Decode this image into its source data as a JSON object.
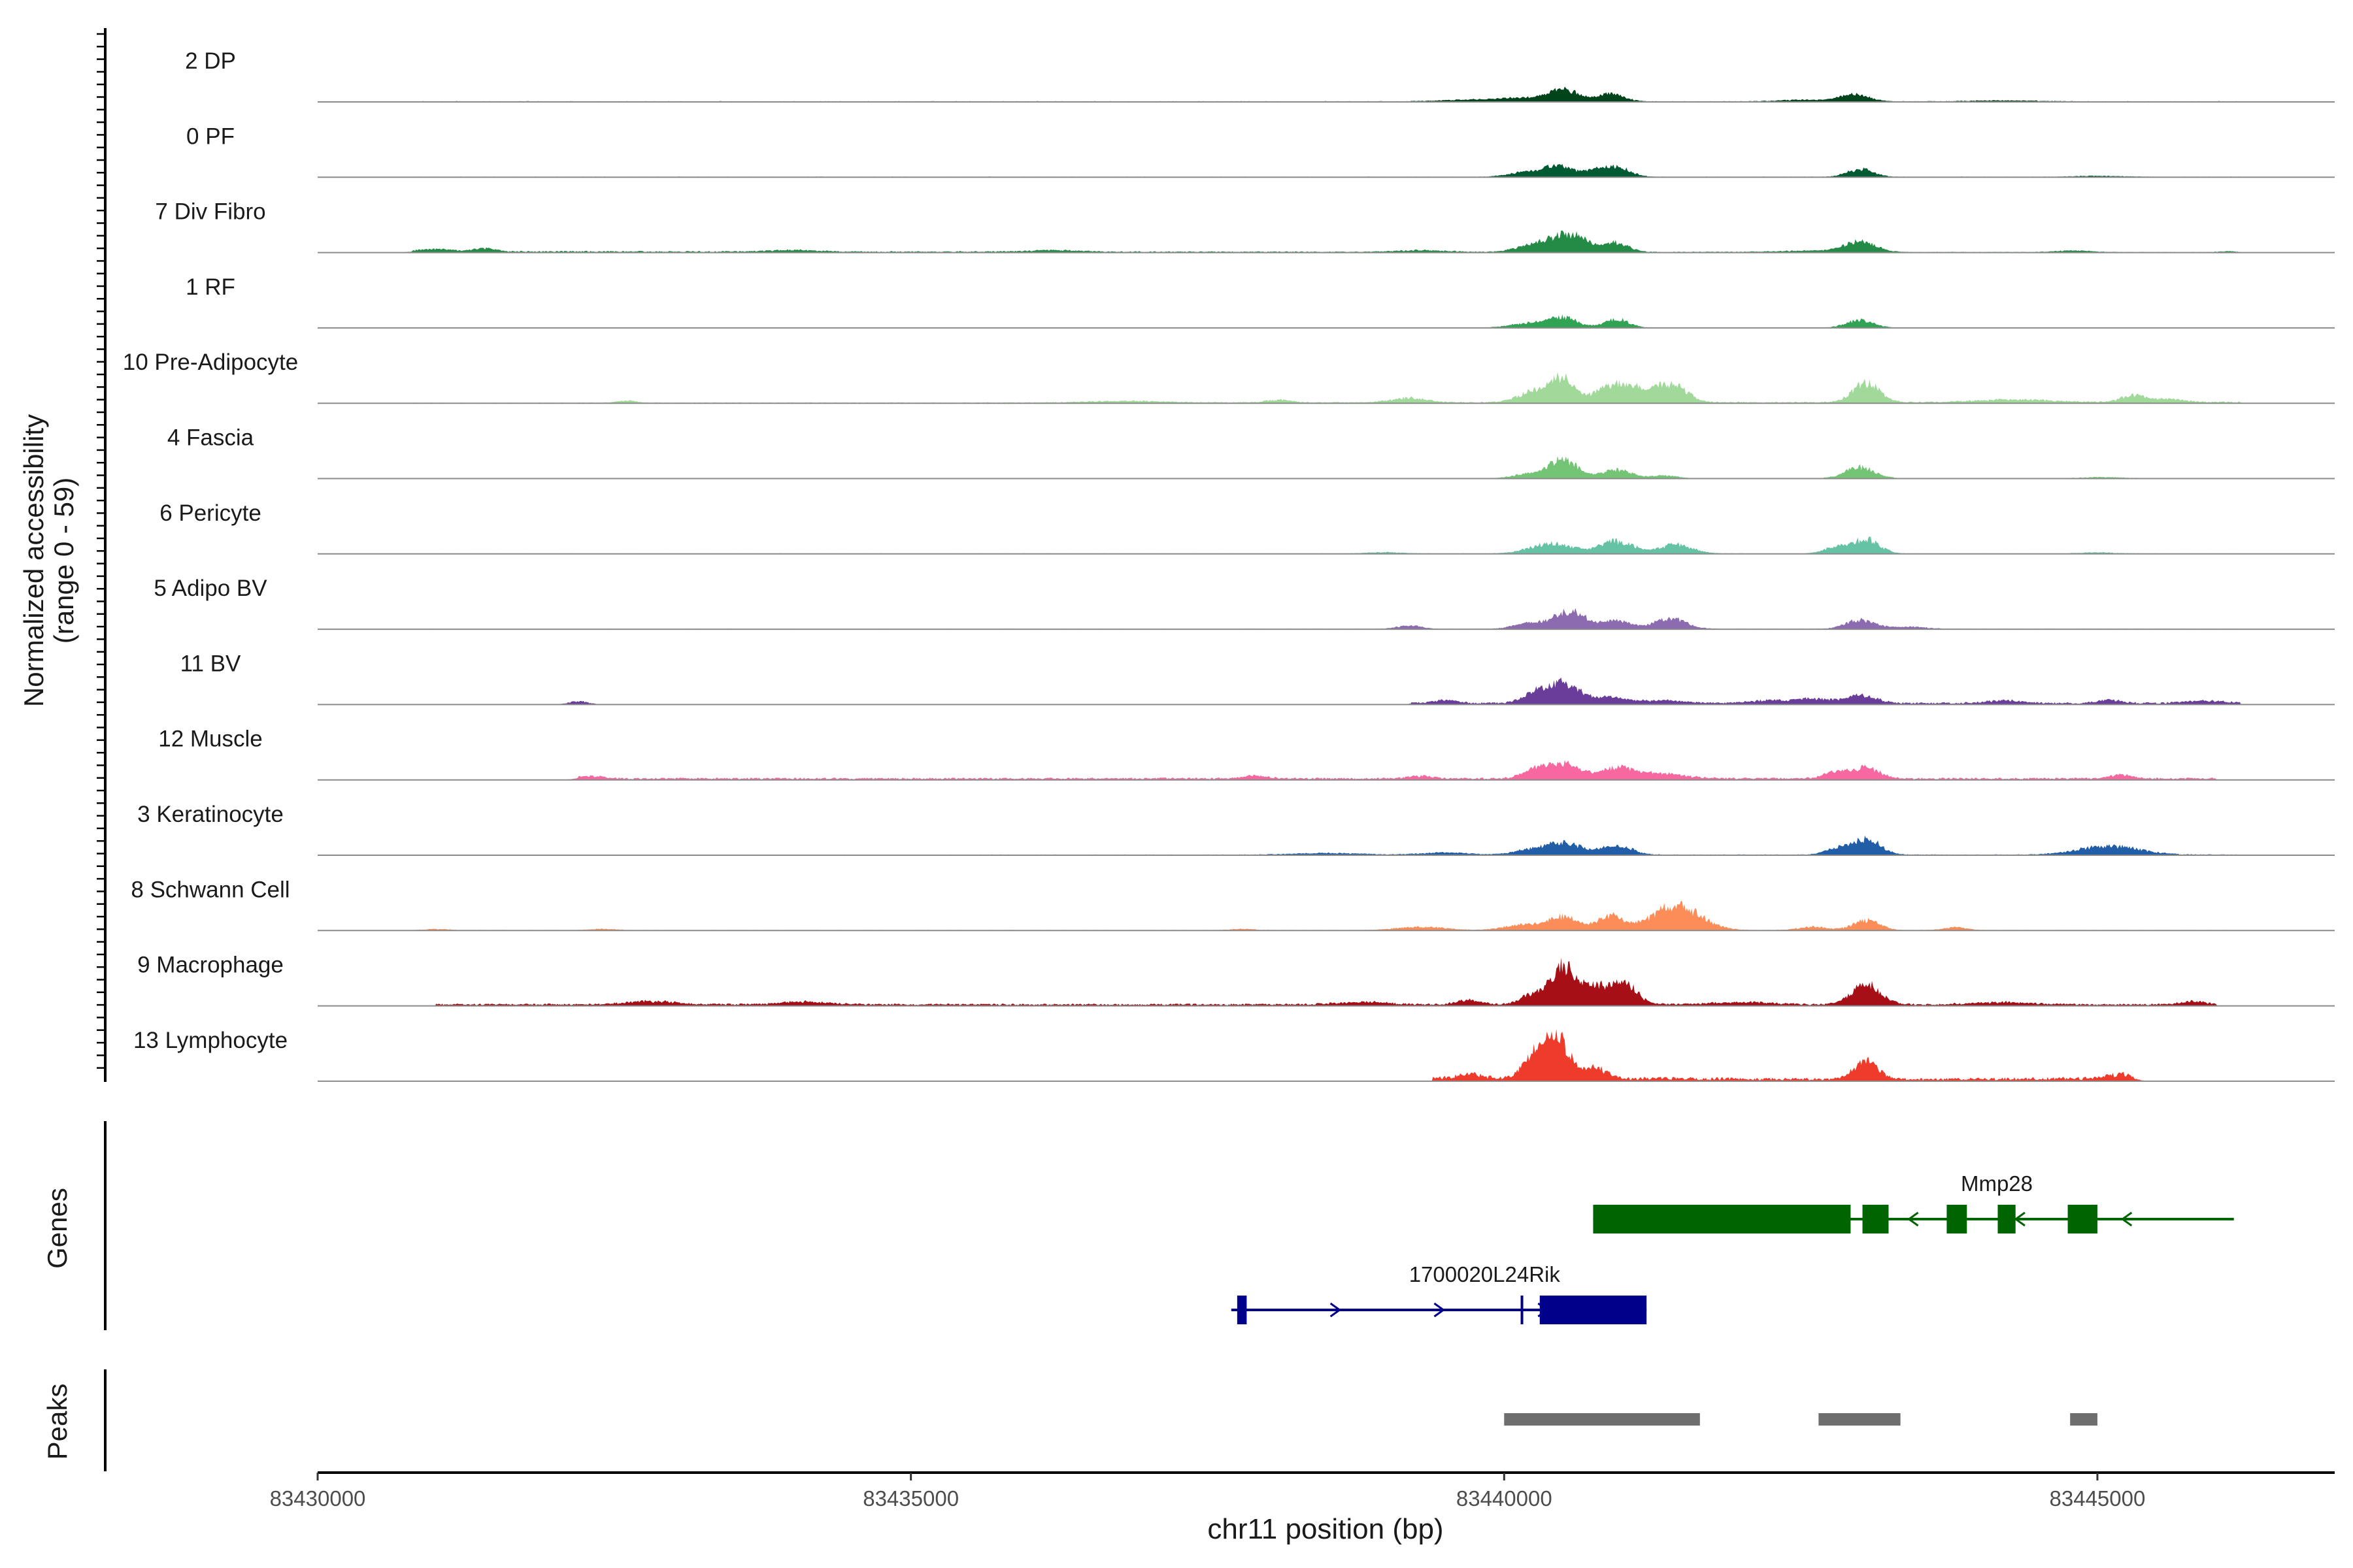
{
  "chart_data": {
    "type": "area",
    "title": "",
    "chromosome": "chr11",
    "xlabel": "chr11 position (bp)",
    "xlim": [
      83430000,
      83447000
    ],
    "xticks": [
      83430000,
      83435000,
      83440000,
      83445000
    ],
    "xtick_labels": [
      "83430000",
      "83435000",
      "83440000",
      "83445000"
    ],
    "ylabel": "Normalized accessibility",
    "ylabel_range": "(range 0 - 59)",
    "ylim": [
      0,
      59
    ],
    "tracks": [
      {
        "name": "2 DP",
        "color": "#00441b",
        "base": [
          [
            83430800,
            0.5
          ],
          [
            83446200,
            0.5
          ]
        ],
        "peaks": [
          [
            83440500,
            10,
            130
          ],
          [
            83440150,
            3,
            200
          ],
          [
            83440900,
            7,
            110
          ],
          [
            83439700,
            1.5,
            250
          ],
          [
            83442950,
            6.5,
            120
          ],
          [
            83442500,
            1.5,
            200
          ],
          [
            83444200,
            0.9,
            300
          ]
        ]
      },
      {
        "name": "0 PF",
        "color": "#005a32",
        "base": [
          [
            83430800,
            0.4
          ],
          [
            83446200,
            0.4
          ]
        ],
        "peaks": [
          [
            83440450,
            10,
            120
          ],
          [
            83440150,
            4,
            130
          ],
          [
            83440950,
            9,
            110
          ],
          [
            83440750,
            5,
            100
          ],
          [
            83443000,
            7,
            110
          ],
          [
            83445000,
            1,
            200
          ]
        ]
      },
      {
        "name": "7 Div Fibro",
        "color": "#238b45",
        "base": [
          [
            83430800,
            1.2
          ],
          [
            83446200,
            0.4
          ]
        ],
        "peaks": [
          [
            83440550,
            16,
            150
          ],
          [
            83440250,
            6,
            140
          ],
          [
            83440950,
            8,
            100
          ],
          [
            83443000,
            9,
            130
          ],
          [
            83431000,
            2,
            150
          ],
          [
            83431400,
            3,
            90
          ],
          [
            83434000,
            1.5,
            200
          ],
          [
            83436200,
            1.5,
            200
          ],
          [
            83439300,
            1.5,
            200
          ],
          [
            83442600,
            1.2,
            300
          ],
          [
            83444800,
            1.5,
            150
          ],
          [
            83446100,
            0.8,
            80
          ]
        ]
      },
      {
        "name": "1 RF",
        "color": "#31a354",
        "base": [
          [
            83430800,
            0.3
          ],
          [
            83446200,
            0.3
          ]
        ],
        "peaks": [
          [
            83440500,
            9,
            120
          ],
          [
            83440200,
            4,
            150
          ],
          [
            83440950,
            8,
            100
          ],
          [
            83443000,
            7,
            110
          ]
        ]
      },
      {
        "name": "10 Pre-Adipocyte",
        "color": "#a1d99b",
        "base": [
          [
            83430800,
            0.4
          ],
          [
            83446200,
            1.2
          ]
        ],
        "peaks": [
          [
            83440300,
            12,
            150
          ],
          [
            83440500,
            17,
            90
          ],
          [
            83440900,
            14,
            150
          ],
          [
            83441400,
            17,
            130
          ],
          [
            83441100,
            8,
            120
          ],
          [
            83443050,
            18,
            110
          ],
          [
            83439200,
            4,
            150
          ],
          [
            83438100,
            2.5,
            100
          ],
          [
            83432600,
            2,
            80
          ],
          [
            83436800,
            1.5,
            300
          ],
          [
            83444300,
            2.5,
            300
          ],
          [
            83445300,
            6,
            100
          ],
          [
            83445600,
            3,
            120
          ]
        ]
      },
      {
        "name": "4 Fascia",
        "color": "#74c476",
        "base": [
          [
            83430800,
            0.4
          ],
          [
            83446200,
            0.4
          ]
        ],
        "peaks": [
          [
            83440500,
            17,
            120
          ],
          [
            83440200,
            4,
            120
          ],
          [
            83440950,
            8,
            120
          ],
          [
            83441350,
            2.5,
            100
          ],
          [
            83443000,
            10,
            120
          ],
          [
            83445050,
            1,
            150
          ]
        ]
      },
      {
        "name": "6 Pericyte",
        "color": "#66c2a4",
        "base": [
          [
            83430800,
            0.4
          ],
          [
            83446200,
            0.4
          ]
        ],
        "peaks": [
          [
            83440400,
            9,
            180
          ],
          [
            83440950,
            11,
            140
          ],
          [
            83441450,
            8,
            140
          ],
          [
            83442800,
            6,
            100
          ],
          [
            83443050,
            13,
            110
          ],
          [
            83439000,
            1.2,
            150
          ],
          [
            83445000,
            1,
            150
          ]
        ]
      },
      {
        "name": "5 Adipo BV",
        "color": "#8c6bb1",
        "base": [
          [
            83430800,
            0.3
          ],
          [
            83446200,
            0.4
          ]
        ],
        "peaks": [
          [
            83440550,
            16,
            140
          ],
          [
            83440200,
            5,
            120
          ],
          [
            83440950,
            7,
            120
          ],
          [
            83441400,
            10,
            130
          ],
          [
            83443000,
            8,
            120
          ],
          [
            83439200,
            3,
            100
          ],
          [
            83443400,
            2,
            150
          ]
        ]
      },
      {
        "name": "11 BV",
        "color": "#6a3d9a",
        "base": [
          [
            83439200,
            1.5
          ],
          [
            83446200,
            1.5
          ]
        ],
        "peaks": [
          [
            83440500,
            18,
            140
          ],
          [
            83440250,
            8,
            100
          ],
          [
            83440900,
            5,
            120
          ],
          [
            83443000,
            7,
            130
          ],
          [
            83442600,
            4,
            150
          ],
          [
            83432200,
            3,
            80
          ],
          [
            83439500,
            3,
            100
          ],
          [
            83441300,
            2.5,
            200
          ],
          [
            83442200,
            2.5,
            150
          ],
          [
            83444200,
            2.5,
            150
          ],
          [
            83445100,
            3,
            100
          ],
          [
            83445900,
            2.5,
            150
          ]
        ]
      },
      {
        "name": "12 Muscle",
        "color": "#f768a1",
        "base": [
          [
            83432200,
            1.5
          ],
          [
            83432600,
            1.5
          ],
          [
            83437800,
            1.5
          ],
          [
            83446000,
            1.5
          ]
        ],
        "peaks": [
          [
            83440500,
            13,
            150
          ],
          [
            83440250,
            7,
            100
          ],
          [
            83440950,
            9,
            130
          ],
          [
            83441300,
            5,
            200
          ],
          [
            83442800,
            6,
            100
          ],
          [
            83443050,
            10,
            110
          ],
          [
            83432300,
            2.5,
            100
          ],
          [
            83437900,
            2.5,
            100
          ],
          [
            83439300,
            2.5,
            100
          ],
          [
            83445200,
            3,
            100
          ]
        ]
      },
      {
        "name": "3 Keratinocyte",
        "color": "#225ea8",
        "base": [
          [
            83430800,
            0.4
          ],
          [
            83446200,
            0.6
          ]
        ],
        "peaks": [
          [
            83440500,
            11,
            150
          ],
          [
            83440200,
            4,
            130
          ],
          [
            83440950,
            9,
            120
          ],
          [
            83442800,
            5,
            100
          ],
          [
            83443050,
            14,
            120
          ],
          [
            83445100,
            8,
            250
          ],
          [
            83438500,
            1.5,
            300
          ],
          [
            83439500,
            2,
            200
          ]
        ]
      },
      {
        "name": "8 Schwann Cell",
        "color": "#fc8d59",
        "base": [
          [
            83430800,
            0.4
          ],
          [
            83446200,
            0.4
          ]
        ],
        "peaks": [
          [
            83441450,
            22,
            200
          ],
          [
            83440900,
            13,
            110
          ],
          [
            83440500,
            12,
            130
          ],
          [
            83440150,
            5,
            150
          ],
          [
            83439300,
            3,
            200
          ],
          [
            83443050,
            9,
            110
          ],
          [
            83442600,
            3,
            120
          ],
          [
            83443800,
            2.5,
            100
          ],
          [
            83431000,
            1,
            100
          ],
          [
            83432400,
            1.2,
            100
          ],
          [
            83437800,
            1.2,
            100
          ]
        ]
      },
      {
        "name": "9 Macrophage",
        "color": "#a50f15",
        "base": [
          [
            83431000,
            1.5
          ],
          [
            83446000,
            1.5
          ]
        ],
        "peaks": [
          [
            83440500,
            34,
            100
          ],
          [
            83440250,
            10,
            100
          ],
          [
            83440750,
            15,
            100
          ],
          [
            83441000,
            20,
            110
          ],
          [
            83443050,
            18,
            120
          ],
          [
            83439700,
            4,
            100
          ],
          [
            83438800,
            2.5,
            200
          ],
          [
            83432800,
            3,
            200
          ],
          [
            83434100,
            2.5,
            200
          ],
          [
            83445800,
            3,
            100
          ],
          [
            83444200,
            2,
            250
          ],
          [
            83442000,
            2,
            250
          ]
        ]
      },
      {
        "name": "13 Lymphocyte",
        "color": "#ef3b2c",
        "base": [
          [
            83439400,
            3
          ],
          [
            83440900,
            3
          ],
          [
            83442900,
            2
          ],
          [
            83443400,
            2
          ],
          [
            83445100,
            3
          ],
          [
            83445300,
            3
          ]
        ],
        "peaks": [
          [
            83440450,
            36,
            100
          ],
          [
            83440250,
            20,
            90
          ],
          [
            83440750,
            10,
            100
          ],
          [
            83443050,
            17,
            100
          ],
          [
            83445200,
            4,
            100
          ],
          [
            83439700,
            4,
            100
          ]
        ]
      }
    ],
    "genes": [
      {
        "name": "Mmp28",
        "strand": "-",
        "color": "#006400",
        "start": 83440750,
        "end": 83446150,
        "exons": [
          [
            83440750,
            83442920
          ],
          [
            83443020,
            83443240
          ],
          [
            83443730,
            83443900
          ],
          [
            83444160,
            83444310
          ],
          [
            83444750,
            83445000
          ]
        ]
      },
      {
        "name": "1700020L24Rik",
        "strand": "+",
        "color": "#00008b",
        "start": 83437700,
        "end": 83441200,
        "exons": [
          [
            83437750,
            83437830
          ],
          [
            83440300,
            83441200
          ]
        ],
        "marks": [
          83440150
        ]
      }
    ],
    "peaks_regions": [
      [
        83440000,
        83441650
      ],
      [
        83442650,
        83443340
      ],
      [
        83444770,
        83445000
      ]
    ],
    "panel_titles": {
      "genes": "Genes",
      "peaks": "Peaks"
    }
  }
}
